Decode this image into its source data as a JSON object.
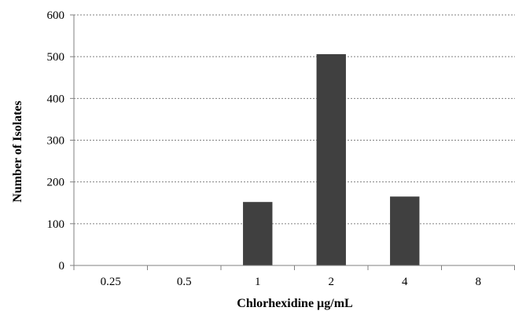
{
  "chart_data": {
    "type": "bar",
    "title": "",
    "xlabel": "Chlorhexidine µg/mL",
    "ylabel": "Number of Isolates",
    "categories": [
      "0.25",
      "0.5",
      "1",
      "2",
      "4",
      "8"
    ],
    "values": [
      0,
      0,
      152,
      506,
      165,
      0
    ],
    "ylim": [
      0,
      600
    ],
    "yticks": [
      0,
      100,
      200,
      300,
      400,
      500,
      600
    ],
    "grid": true,
    "legend": "none",
    "colors": {
      "bar": "#404040",
      "grid": "#808080",
      "axis": "#808080"
    }
  }
}
